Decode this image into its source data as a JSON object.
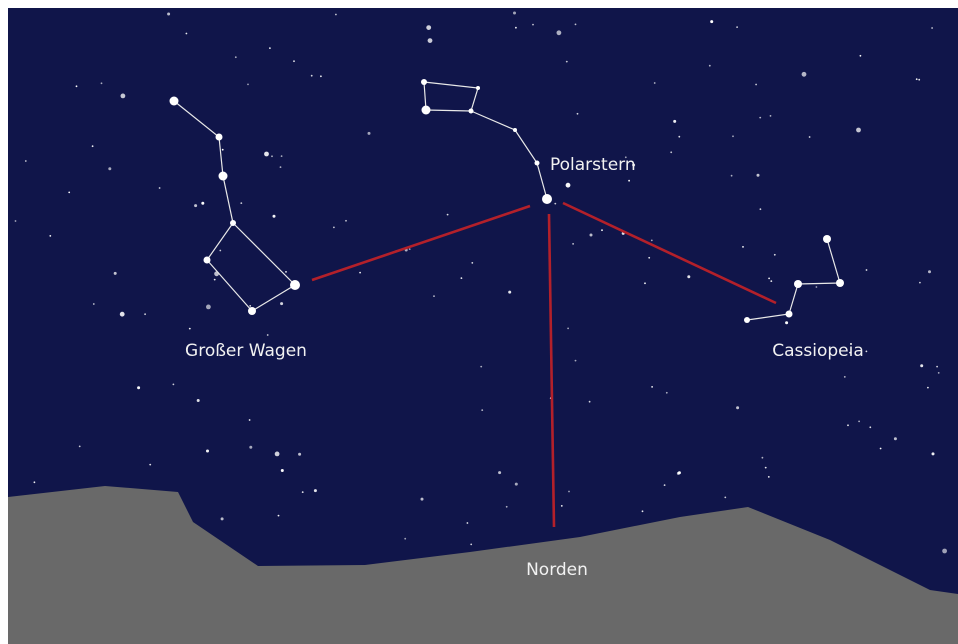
{
  "labels": {
    "polaris": "Polarstern",
    "big_dipper": "Großer Wagen",
    "cassiopeia": "Cassiopeia",
    "north": "Norden"
  }
}
